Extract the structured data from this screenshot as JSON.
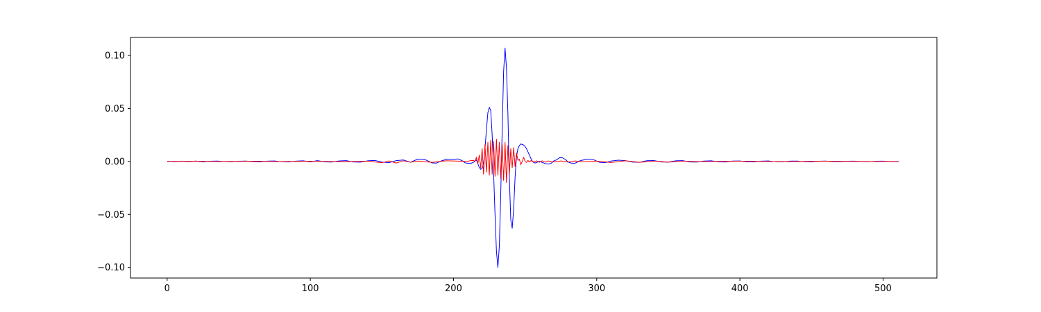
{
  "chart_data": {
    "type": "line",
    "title": "",
    "xlabel": "",
    "ylabel": "",
    "xlim": [
      -25.6,
      537.6
    ],
    "ylim": [
      -0.11,
      0.117
    ],
    "grid": false,
    "legend": "none",
    "x_ticks": [
      0,
      100,
      200,
      300,
      400,
      500
    ],
    "x_tick_labels": [
      "0",
      "100",
      "200",
      "300",
      "400",
      "500"
    ],
    "y_ticks": [
      -0.1,
      -0.05,
      0.0,
      0.05,
      0.1
    ],
    "y_tick_labels": [
      "−0.10",
      "−0.05",
      "0.00",
      "0.05",
      "0.10"
    ],
    "series": [
      {
        "color": "#0000ff",
        "points": [
          [
            0,
            0.0002
          ],
          [
            5,
            -0.0003
          ],
          [
            10,
            0.0003
          ],
          [
            15,
            -0.0002
          ],
          [
            20,
            0.0004
          ],
          [
            25,
            -0.0004
          ],
          [
            30,
            0.0002
          ],
          [
            35,
            0.0004
          ],
          [
            40,
            -0.0002
          ],
          [
            45,
            -0.0004
          ],
          [
            50,
            0.0002
          ],
          [
            55,
            0.0004
          ],
          [
            60,
            -0.0002
          ],
          [
            65,
            -0.0004
          ],
          [
            70,
            0.0003
          ],
          [
            75,
            0.0005
          ],
          [
            80,
            -0.0003
          ],
          [
            85,
            -0.0005
          ],
          [
            90,
            0.0003
          ],
          [
            95,
            0.0006
          ],
          [
            100,
            -0.0004
          ],
          [
            105,
            0.0008
          ],
          [
            110,
            -0.0004
          ],
          [
            115,
            -0.0006
          ],
          [
            120,
            0.0005
          ],
          [
            125,
            0.0008
          ],
          [
            130,
            -0.0005
          ],
          [
            135,
            -0.0007
          ],
          [
            140,
            0.0006
          ],
          [
            145,
            0.001
          ],
          [
            150,
            -0.0006
          ],
          [
            155,
            -0.0012
          ],
          [
            160,
            0.0008
          ],
          [
            165,
            0.0014
          ],
          [
            170,
            -0.0008
          ],
          [
            175,
            0.0022
          ],
          [
            180,
            0.0018
          ],
          [
            185,
            -0.0014
          ],
          [
            188,
            -0.0016
          ],
          [
            192,
            0.0008
          ],
          [
            196,
            0.0022
          ],
          [
            200,
            0.0018
          ],
          [
            203,
            0.0024
          ],
          [
            206,
            0.0008
          ],
          [
            208,
            -0.0012
          ],
          [
            210,
            -0.0018
          ],
          [
            212,
            -0.0018
          ],
          [
            214,
            -0.0008
          ],
          [
            216,
            0.0015
          ],
          [
            218,
            -0.0055
          ],
          [
            219,
            -0.0075
          ],
          [
            220,
            -0.0062
          ],
          [
            221,
            -0.002
          ],
          [
            222,
            0.012
          ],
          [
            223,
            0.03
          ],
          [
            224,
            0.046
          ],
          [
            225,
            0.051
          ],
          [
            226,
            0.048
          ],
          [
            227,
            0.025
          ],
          [
            228,
            -0.01
          ],
          [
            229,
            -0.05
          ],
          [
            230,
            -0.085
          ],
          [
            231,
            -0.1
          ],
          [
            232,
            -0.08
          ],
          [
            233,
            -0.03
          ],
          [
            234,
            0.03
          ],
          [
            235,
            0.085
          ],
          [
            236,
            0.107
          ],
          [
            237,
            0.088
          ],
          [
            238,
            0.045
          ],
          [
            239,
            -0.015
          ],
          [
            240,
            -0.055
          ],
          [
            241,
            -0.063
          ],
          [
            242,
            -0.045
          ],
          [
            243,
            -0.015
          ],
          [
            244,
            0.005
          ],
          [
            245,
            0.012
          ],
          [
            246,
            0.015
          ],
          [
            247,
            0.0165
          ],
          [
            248,
            0.016
          ],
          [
            249,
            0.0155
          ],
          [
            250,
            0.014
          ],
          [
            251,
            0.012
          ],
          [
            252,
            0.009
          ],
          [
            253,
            0.006
          ],
          [
            254,
            0.003
          ],
          [
            255,
            0.0005
          ],
          [
            256,
            -0.001
          ],
          [
            257,
            -0.0015
          ],
          [
            258,
            -0.001
          ],
          [
            260,
            0.0002
          ],
          [
            262,
            -0.001
          ],
          [
            264,
            -0.002
          ],
          [
            266,
            -0.0025
          ],
          [
            268,
            -0.002
          ],
          [
            270,
            0.0005
          ],
          [
            272,
            0.0015
          ],
          [
            274,
            0.0035
          ],
          [
            276,
            0.0035
          ],
          [
            278,
            0.002
          ],
          [
            280,
            -0.0005
          ],
          [
            282,
            -0.0015
          ],
          [
            284,
            -0.002
          ],
          [
            286,
            -0.001
          ],
          [
            288,
            0.0005
          ],
          [
            290,
            0.0012
          ],
          [
            294,
            0.0022
          ],
          [
            298,
            0.0015
          ],
          [
            302,
            -0.0008
          ],
          [
            306,
            -0.0012
          ],
          [
            310,
            0.0004
          ],
          [
            315,
            0.0012
          ],
          [
            320,
            0.0008
          ],
          [
            325,
            -0.0006
          ],
          [
            330,
            -0.0008
          ],
          [
            335,
            0.0007
          ],
          [
            340,
            0.0009
          ],
          [
            345,
            -0.0005
          ],
          [
            350,
            -0.0007
          ],
          [
            355,
            0.0006
          ],
          [
            360,
            0.0008
          ],
          [
            365,
            -0.0005
          ],
          [
            370,
            -0.0006
          ],
          [
            375,
            0.0004
          ],
          [
            380,
            0.0006
          ],
          [
            385,
            -0.0004
          ],
          [
            390,
            -0.0005
          ],
          [
            395,
            0.0004
          ],
          [
            400,
            0.0005
          ],
          [
            405,
            -0.0004
          ],
          [
            410,
            -0.0004
          ],
          [
            415,
            0.0003
          ],
          [
            420,
            0.0005
          ],
          [
            425,
            -0.0003
          ],
          [
            430,
            -0.0004
          ],
          [
            435,
            0.0003
          ],
          [
            440,
            0.0004
          ],
          [
            445,
            -0.0003
          ],
          [
            450,
            -0.0004
          ],
          [
            455,
            0.0002
          ],
          [
            460,
            0.0004
          ],
          [
            465,
            -0.0002
          ],
          [
            470,
            -0.0003
          ],
          [
            475,
            0.0002
          ],
          [
            480,
            0.0003
          ],
          [
            485,
            -0.0002
          ],
          [
            490,
            -0.0003
          ],
          [
            495,
            0.0002
          ],
          [
            500,
            0.0003
          ],
          [
            505,
            -0.0002
          ],
          [
            511,
            -0.0002
          ]
        ]
      },
      {
        "color": "#ff0000",
        "points": [
          [
            0,
            0.0
          ],
          [
            20,
            0.0002
          ],
          [
            40,
            -0.0002
          ],
          [
            60,
            0.0002
          ],
          [
            80,
            -0.0002
          ],
          [
            100,
            0.0002
          ],
          [
            120,
            -0.0003
          ],
          [
            140,
            0.0002
          ],
          [
            150,
            -0.0012
          ],
          [
            155,
            0.0005
          ],
          [
            160,
            -0.0015
          ],
          [
            165,
            0.0006
          ],
          [
            170,
            -0.0008
          ],
          [
            175,
            0.0004
          ],
          [
            185,
            -0.0008
          ],
          [
            195,
            0.0006
          ],
          [
            205,
            0.0002
          ],
          [
            210,
            0.0001
          ],
          [
            212,
            0.0008
          ],
          [
            214,
            0.001
          ],
          [
            215,
            0.0
          ],
          [
            216,
            0.004
          ],
          [
            217,
            -0.002
          ],
          [
            218,
            0.006
          ],
          [
            219,
            -0.006
          ],
          [
            220,
            0.012
          ],
          [
            221,
            -0.012
          ],
          [
            222,
            0.016
          ],
          [
            223,
            -0.01
          ],
          [
            224,
            0.018
          ],
          [
            225,
            -0.013
          ],
          [
            226,
            0.02
          ],
          [
            227,
            -0.012
          ],
          [
            228,
            0.019
          ],
          [
            229,
            -0.014
          ],
          [
            230,
            0.021
          ],
          [
            231,
            -0.013
          ],
          [
            232,
            0.018
          ],
          [
            233,
            -0.016
          ],
          [
            234,
            0.016
          ],
          [
            235,
            -0.018
          ],
          [
            236,
            0.018
          ],
          [
            237,
            -0.02
          ],
          [
            238,
            0.015
          ],
          [
            239,
            -0.012
          ],
          [
            240,
            0.012
          ],
          [
            241,
            -0.006
          ],
          [
            242,
            0.013
          ],
          [
            243,
            -0.005
          ],
          [
            244,
            0.008
          ],
          [
            245,
            0.001
          ],
          [
            246,
            0.002
          ],
          [
            247,
            -0.003
          ],
          [
            248,
            0.0
          ],
          [
            249,
            0.004
          ],
          [
            250,
            0.0
          ],
          [
            251,
            -0.001
          ],
          [
            252,
            0.001
          ],
          [
            253,
            -0.0005
          ],
          [
            254,
            0.0008
          ],
          [
            256,
            -0.0005
          ],
          [
            258,
            0.0006
          ],
          [
            260,
            -0.0008
          ],
          [
            262,
            0.0006
          ],
          [
            264,
            -0.0006
          ],
          [
            266,
            0.0005
          ],
          [
            270,
            -0.0005
          ],
          [
            275,
            0.0005
          ],
          [
            280,
            -0.0006
          ],
          [
            285,
            0.0005
          ],
          [
            290,
            -0.0004
          ],
          [
            300,
            0.0003
          ],
          [
            310,
            -0.001
          ],
          [
            320,
            0.0006
          ],
          [
            330,
            -0.0008
          ],
          [
            340,
            0.0004
          ],
          [
            350,
            -0.0007
          ],
          [
            360,
            0.0003
          ],
          [
            370,
            -0.0002
          ],
          [
            400,
            0.0002
          ],
          [
            430,
            -0.0002
          ],
          [
            460,
            0.0002
          ],
          [
            490,
            -0.0001
          ],
          [
            511,
            0.0
          ]
        ]
      }
    ]
  }
}
